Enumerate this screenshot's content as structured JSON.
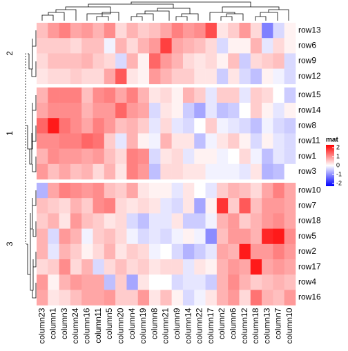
{
  "chart_data": {
    "type": "heatmap",
    "columns": [
      "column23",
      "column1",
      "column3",
      "column24",
      "column16",
      "column11",
      "column5",
      "column20",
      "column4",
      "column19",
      "column8",
      "column21",
      "column9",
      "column14",
      "column22",
      "column17",
      "column2",
      "column6",
      "column12",
      "column18",
      "column13",
      "column7",
      "column10"
    ],
    "row_groups": [
      {
        "title": "2",
        "rows": [
          "row13",
          "row6",
          "row9",
          "row12"
        ],
        "values": [
          [
            0.5,
            0.8,
            1.0,
            0.7,
            0.8,
            0.6,
            0.9,
            0.3,
            0.6,
            0.4,
            0.5,
            0.7,
            1.0,
            0.8,
            0.9,
            1.4,
            0.2,
            0.4,
            0.8,
            0.3,
            -1.0,
            -0.3,
            0.1
          ],
          [
            0.4,
            0.4,
            0.4,
            0.3,
            0.5,
            0.5,
            -0.1,
            0.6,
            0.3,
            0.6,
            0.8,
            1.5,
            0.7,
            0.6,
            0.5,
            0.3,
            -0.3,
            0.1,
            0.1,
            0.6,
            -0.2,
            0.3,
            0.1
          ],
          [
            0.3,
            0.5,
            0.5,
            0.5,
            0.6,
            0.4,
            0.3,
            -0.3,
            0.6,
            0.1,
            1.2,
            0.8,
            0.6,
            0.3,
            0.2,
            0.3,
            0.1,
            0.5,
            -0.4,
            0.3,
            0.4,
            0.5,
            -0.3
          ],
          [
            0.2,
            0.3,
            0.3,
            0.4,
            0.3,
            0.3,
            0.7,
            1.3,
            0.2,
            0.1,
            0.8,
            0.6,
            0.4,
            0.4,
            0.2,
            0.2,
            -0.4,
            0.2,
            -0.3,
            -0.5,
            0.1,
            -0.1,
            -0.3
          ]
        ]
      },
      {
        "title": "1",
        "rows": [
          "row15",
          "row14",
          "row8",
          "row11",
          "row1",
          "row3"
        ],
        "values": [
          [
            0.6,
            1.0,
            1.0,
            1.0,
            0.5,
            0.9,
            1.0,
            0.7,
            1.0,
            0.6,
            0.2,
            0.3,
            0.1,
            0.6,
            0.4,
            -0.2,
            0.4,
            0.4,
            -0.2,
            0.4,
            0.3,
            0.0,
            -0.4
          ],
          [
            0.7,
            0.9,
            0.9,
            0.9,
            0.6,
            0.8,
            0.8,
            1.2,
            0.8,
            0.7,
            -0.3,
            0.2,
            0.1,
            -0.4,
            -0.7,
            -0.2,
            -0.5,
            -0.4,
            0.0,
            0.4,
            0.1,
            -0.2,
            0.1
          ],
          [
            1.2,
            1.8,
            1.1,
            0.9,
            0.7,
            1.0,
            0.8,
            0.5,
            0.6,
            0.4,
            -0.2,
            0.3,
            -0.2,
            -0.3,
            0.0,
            0.4,
            -0.1,
            -0.2,
            -0.3,
            -0.5,
            -0.1,
            -0.3,
            -0.4
          ],
          [
            0.9,
            0.9,
            1.0,
            1.0,
            1.2,
            1.1,
            0.4,
            -0.2,
            0.6,
            0.1,
            -0.1,
            0.6,
            0.2,
            0.2,
            -0.5,
            -0.1,
            0.2,
            0.4,
            0.1,
            -0.3,
            0.1,
            -0.2,
            -0.3
          ],
          [
            0.6,
            0.9,
            0.8,
            0.8,
            0.7,
            0.8,
            0.5,
            0.3,
            1.0,
            0.9,
            -0.3,
            0.2,
            0.3,
            -0.2,
            0.1,
            0.1,
            -0.1,
            0.0,
            0.3,
            -0.1,
            -0.5,
            -0.2,
            -0.3
          ],
          [
            0.8,
            0.5,
            0.7,
            0.5,
            0.6,
            0.3,
            0.6,
            0.2,
            1.0,
            0.8,
            -0.5,
            0.3,
            0.3,
            0.2,
            0.2,
            -0.1,
            -0.1,
            -0.1,
            -0.2,
            0.2,
            -0.6,
            -0.5,
            0.0
          ]
        ]
      },
      {
        "title": "3",
        "rows": [
          "row10",
          "row7",
          "row18",
          "row5",
          "row2",
          "row17",
          "row4",
          "row16"
        ],
        "values": [
          [
            -0.6,
            0.7,
            1.0,
            0.9,
            0.8,
            0.9,
            0.5,
            0.4,
            0.7,
            0.2,
            0.1,
            0.1,
            -0.2,
            0.2,
            0.0,
            -0.2,
            0.4,
            0.6,
            0.5,
            0.3,
            0.7,
            1.0,
            0.7
          ],
          [
            0.5,
            0.4,
            0.3,
            0.6,
            0.4,
            0.9,
            1.0,
            0.3,
            0.2,
            0.3,
            0.2,
            -0.2,
            -0.3,
            0.2,
            -0.7,
            0.1,
            1.6,
            0.4,
            1.3,
            0.5,
            0.8,
            0.8,
            0.7
          ],
          [
            0.4,
            0.6,
            0.2,
            0.8,
            0.5,
            0.4,
            0.2,
            0.3,
            -0.3,
            -0.5,
            -0.2,
            -0.2,
            0.2,
            -0.4,
            -0.4,
            -0.1,
            0.6,
            0.8,
            0.4,
            0.6,
            0.8,
            0.9,
            0.7
          ],
          [
            0.6,
            -0.3,
            0.8,
            0.6,
            -0.1,
            0.4,
            0.5,
            0.3,
            -0.1,
            -0.3,
            -0.2,
            -0.3,
            -0.1,
            0.1,
            -0.1,
            -0.9,
            0.5,
            0.8,
            0.8,
            0.6,
            1.7,
            1.8,
            0.9
          ],
          [
            0.6,
            -0.2,
            0.6,
            0.4,
            0.1,
            0.3,
            0.6,
            0.2,
            0.4,
            0.3,
            -0.1,
            0.0,
            -0.3,
            -0.6,
            -0.4,
            -0.2,
            0.7,
            0.6,
            1.8,
            0.8,
            0.8,
            1.0,
            0.8
          ],
          [
            0.3,
            0.4,
            0.9,
            0.3,
            0.6,
            -0.3,
            0.3,
            0.5,
            0.3,
            0.4,
            0.2,
            0.3,
            0.3,
            -0.2,
            0.2,
            0.1,
            0.6,
            0.8,
            0.7,
            1.8,
            0.7,
            0.8,
            0.7
          ],
          [
            0.8,
            0.1,
            0.6,
            0.8,
            0.7,
            0.7,
            -0.5,
            0.4,
            -0.7,
            0.2,
            0.0,
            0.0,
            -0.3,
            -0.2,
            -0.2,
            -0.4,
            0.6,
            0.9,
            0.6,
            0.4,
            0.5,
            0.6,
            0.5
          ],
          [
            0.7,
            0.2,
            0.3,
            0.5,
            0.7,
            0.7,
            0.8,
            0.4,
            0.4,
            0.8,
            0.2,
            0.5,
            0.1,
            -0.3,
            -0.1,
            0.2,
            0.6,
            0.8,
            0.3,
            1.1,
            0.6,
            0.5,
            0.8
          ]
        ]
      }
    ],
    "zlim": [
      -2,
      2
    ],
    "colors": {
      "low": "#0000ff",
      "mid": "#ffffff",
      "high": "#ff0000"
    },
    "legend": {
      "title": "mat",
      "ticks": [
        2,
        1,
        0,
        -1,
        -2
      ]
    }
  }
}
